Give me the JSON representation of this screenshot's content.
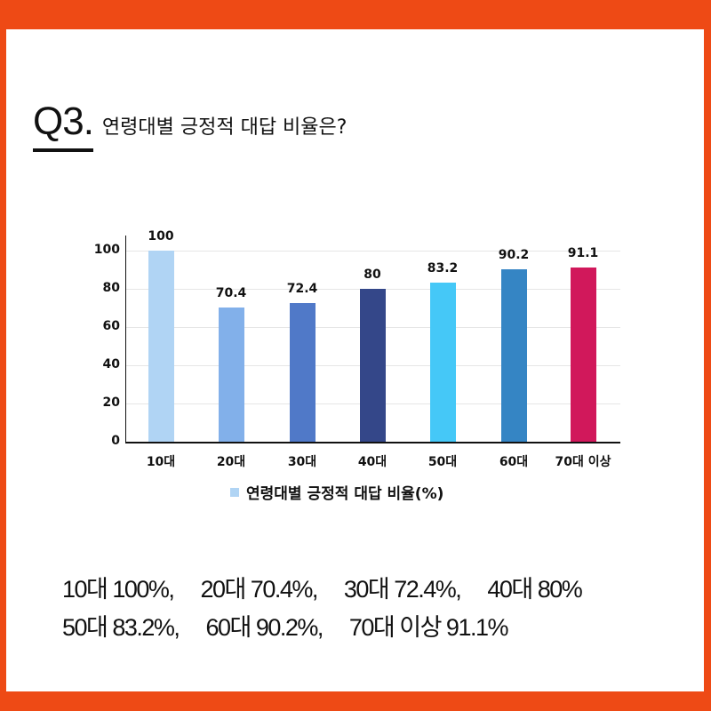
{
  "frame": {
    "border_color": "#ee4a15",
    "background": "#ffffff"
  },
  "header": {
    "question_number": "Q3.",
    "question_text": "연령대별 긍정적 대답 비율은?"
  },
  "chart_data": {
    "type": "bar",
    "title": "",
    "xlabel": "",
    "ylabel": "",
    "ylim": [
      0,
      110
    ],
    "yticks": [
      0,
      20,
      40,
      60,
      80,
      100
    ],
    "grid": true,
    "categories": [
      "10대",
      "20대",
      "30대",
      "40대",
      "50대",
      "60대",
      "70대 이상"
    ],
    "series": [
      {
        "name": "연령대별 긍정적 대답 비율(%)",
        "values": [
          100,
          70.4,
          72.4,
          80,
          83.2,
          90.2,
          91.1
        ],
        "value_labels": [
          "100",
          "70.4",
          "72.4",
          "80",
          "83.2",
          "90.2",
          "91.1"
        ],
        "colors": [
          "#b0d4f4",
          "#82b0ea",
          "#5079c8",
          "#344789",
          "#45c8f7",
          "#3585c4",
          "#d1185b"
        ]
      }
    ],
    "legend": {
      "position": "bottom",
      "label": "연령대별 긍정적 대답 비율(%)",
      "swatch_color": "#b0d4f4"
    }
  },
  "summary": {
    "line1": "10대 100%,     20대 70.4%,     30대 72.4%,     40대 80%",
    "line2": "50대 83.2%,     60대 90.2%,     70대 이상 91.1%"
  }
}
